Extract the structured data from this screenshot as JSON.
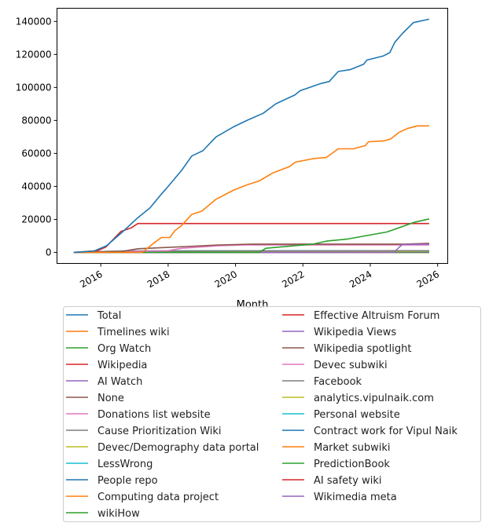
{
  "chart_data": {
    "type": "line",
    "title": "",
    "xlabel": "Month",
    "ylabel": "",
    "xlim": [
      2014.7,
      2026.3
    ],
    "ylim": [
      -6700,
      148000
    ],
    "x_ticks": [
      2016,
      2018,
      2020,
      2022,
      2024,
      2026
    ],
    "x_tick_labels": [
      "2016",
      "2018",
      "2020",
      "2022",
      "2024",
      "2026"
    ],
    "y_ticks": [
      0,
      20000,
      40000,
      60000,
      80000,
      100000,
      120000,
      140000
    ],
    "y_tick_labels": [
      "0",
      "20000",
      "40000",
      "60000",
      "80000",
      "100000",
      "120000",
      "140000"
    ],
    "grid": false,
    "legend_placement": "below",
    "legend_columns": 2,
    "series": [
      {
        "name": "Total",
        "color": "#1f77b4",
        "points": [
          [
            2015.2,
            0
          ],
          [
            2015.8,
            800
          ],
          [
            2016.17,
            4000
          ],
          [
            2016.68,
            13000
          ],
          [
            2017.07,
            20500
          ],
          [
            2017.46,
            27000
          ],
          [
            2017.77,
            34600
          ],
          [
            2018.0,
            40000
          ],
          [
            2018.4,
            49700
          ],
          [
            2018.7,
            58400
          ],
          [
            2019.03,
            61600
          ],
          [
            2019.42,
            70000
          ],
          [
            2019.96,
            76300
          ],
          [
            2020.35,
            80100
          ],
          [
            2020.82,
            84300
          ],
          [
            2021.2,
            90100
          ],
          [
            2021.76,
            95400
          ],
          [
            2021.92,
            98000
          ],
          [
            2022.54,
            102400
          ],
          [
            2022.78,
            103600
          ],
          [
            2023.05,
            109700
          ],
          [
            2023.4,
            110800
          ],
          [
            2023.8,
            114000
          ],
          [
            2023.9,
            116600
          ],
          [
            2024.38,
            119000
          ],
          [
            2024.58,
            121100
          ],
          [
            2024.73,
            127400
          ],
          [
            2024.97,
            133000
          ],
          [
            2025.28,
            139300
          ],
          [
            2025.75,
            141400
          ]
        ]
      },
      {
        "name": "Timelines wiki",
        "color": "#ff7f0e",
        "points": [
          [
            2015.2,
            0
          ],
          [
            2017.23,
            0
          ],
          [
            2017.6,
            6000
          ],
          [
            2017.8,
            9000
          ],
          [
            2018.05,
            9000
          ],
          [
            2018.2,
            13200
          ],
          [
            2018.4,
            16300
          ],
          [
            2018.7,
            23000
          ],
          [
            2019.0,
            25000
          ],
          [
            2019.42,
            32200
          ],
          [
            2019.95,
            37800
          ],
          [
            2020.35,
            41000
          ],
          [
            2020.7,
            43300
          ],
          [
            2021.1,
            48100
          ],
          [
            2021.6,
            52000
          ],
          [
            2021.78,
            54700
          ],
          [
            2022.3,
            56800
          ],
          [
            2022.7,
            57600
          ],
          [
            2023.05,
            62800
          ],
          [
            2023.5,
            62800
          ],
          [
            2023.85,
            64700
          ],
          [
            2023.95,
            67100
          ],
          [
            2024.4,
            67600
          ],
          [
            2024.6,
            68700
          ],
          [
            2024.85,
            72700
          ],
          [
            2025.1,
            75100
          ],
          [
            2025.4,
            76700
          ],
          [
            2025.75,
            76700
          ]
        ]
      },
      {
        "name": "Org Watch",
        "color": "#2ca02c",
        "points": [
          [
            2015.2,
            0
          ],
          [
            2020.7,
            0
          ],
          [
            2020.9,
            2500
          ],
          [
            2022.3,
            5000
          ],
          [
            2022.7,
            6800
          ],
          [
            2023.3,
            8000
          ],
          [
            2024.5,
            12400
          ],
          [
            2025.3,
            18200
          ],
          [
            2025.75,
            20300
          ]
        ]
      },
      {
        "name": "Wikipedia",
        "color": "#d62728",
        "points": [
          [
            2015.2,
            0
          ],
          [
            2015.9,
            1000
          ],
          [
            2016.15,
            3200
          ],
          [
            2016.6,
            12700
          ],
          [
            2016.9,
            14800
          ],
          [
            2017.1,
            17500
          ],
          [
            2025.75,
            17500
          ]
        ]
      },
      {
        "name": "AI Watch",
        "color": "#9467bd",
        "points": [
          [
            2015.2,
            0
          ],
          [
            2024.7,
            0
          ],
          [
            2024.95,
            4800
          ],
          [
            2025.75,
            5000
          ]
        ]
      },
      {
        "name": "None",
        "color": "#8c564b",
        "points": [
          [
            2015.2,
            0
          ],
          [
            2016.6,
            500
          ],
          [
            2017.1,
            2200
          ],
          [
            2018.0,
            3000
          ],
          [
            2019.5,
            4500
          ],
          [
            2020.5,
            5000
          ],
          [
            2025.0,
            5000
          ],
          [
            2025.75,
            5500
          ]
        ]
      },
      {
        "name": "Donations list website",
        "color": "#e377c2",
        "points": [
          [
            2015.2,
            0
          ],
          [
            2018.0,
            1000
          ],
          [
            2018.4,
            2500
          ],
          [
            2019.5,
            4000
          ],
          [
            2020.3,
            4500
          ],
          [
            2025.75,
            4500
          ]
        ]
      },
      {
        "name": "Cause Prioritization Wiki",
        "color": "#7f7f7f",
        "points": [
          [
            2015.2,
            0
          ],
          [
            2016.5,
            800
          ],
          [
            2025.75,
            1000
          ]
        ]
      },
      {
        "name": "Devec/Demography data portal",
        "color": "#bcbd22",
        "points": [
          [
            2015.2,
            0
          ],
          [
            2016.8,
            600
          ],
          [
            2025.75,
            700
          ]
        ]
      },
      {
        "name": "LessWrong",
        "color": "#17becf",
        "points": [
          [
            2015.2,
            0
          ],
          [
            2016.7,
            900
          ],
          [
            2025.75,
            1000
          ]
        ]
      },
      {
        "name": "People repo",
        "color": "#1f77b4",
        "points": [
          [
            2015.2,
            0
          ],
          [
            2025.75,
            300
          ]
        ]
      },
      {
        "name": "Computing data project",
        "color": "#ff7f0e",
        "points": [
          [
            2015.2,
            0
          ],
          [
            2025.75,
            200
          ]
        ]
      },
      {
        "name": "wikiHow",
        "color": "#2ca02c",
        "points": [
          [
            2015.2,
            0
          ],
          [
            2025.75,
            200
          ]
        ]
      },
      {
        "name": "Effective Altruism Forum",
        "color": "#d62728",
        "points": [
          [
            2015.2,
            0
          ],
          [
            2025.75,
            300
          ]
        ]
      },
      {
        "name": "Wikipedia Views",
        "color": "#9467bd",
        "points": [
          [
            2015.2,
            0
          ],
          [
            2025.75,
            100
          ]
        ]
      },
      {
        "name": "Wikipedia spotlight",
        "color": "#8c564b",
        "points": [
          [
            2015.2,
            0
          ],
          [
            2025.75,
            100
          ]
        ]
      },
      {
        "name": "Devec subwiki",
        "color": "#e377c2",
        "points": [
          [
            2015.2,
            0
          ],
          [
            2025.75,
            100
          ]
        ]
      },
      {
        "name": "Facebook",
        "color": "#7f7f7f",
        "points": [
          [
            2015.2,
            0
          ],
          [
            2025.75,
            100
          ]
        ]
      },
      {
        "name": "analytics.vipulnaik.com",
        "color": "#bcbd22",
        "points": [
          [
            2015.2,
            0
          ],
          [
            2025.75,
            50
          ]
        ]
      },
      {
        "name": "Personal website",
        "color": "#17becf",
        "points": [
          [
            2015.2,
            0
          ],
          [
            2025.75,
            50
          ]
        ]
      },
      {
        "name": "Contract work for Vipul Naik",
        "color": "#1f77b4",
        "points": [
          [
            2015.2,
            0
          ],
          [
            2025.75,
            50
          ]
        ]
      },
      {
        "name": "Market subwiki",
        "color": "#ff7f0e",
        "points": [
          [
            2015.2,
            0
          ],
          [
            2025.75,
            20
          ]
        ]
      },
      {
        "name": "PredictionBook",
        "color": "#2ca02c",
        "points": [
          [
            2015.2,
            0
          ],
          [
            2025.75,
            20
          ]
        ]
      },
      {
        "name": "AI safety wiki",
        "color": "#d62728",
        "points": [
          [
            2015.2,
            0
          ],
          [
            2025.75,
            10
          ]
        ]
      },
      {
        "name": "Wikimedia meta",
        "color": "#9467bd",
        "points": [
          [
            2015.2,
            0
          ],
          [
            2025.75,
            10
          ]
        ]
      }
    ]
  }
}
